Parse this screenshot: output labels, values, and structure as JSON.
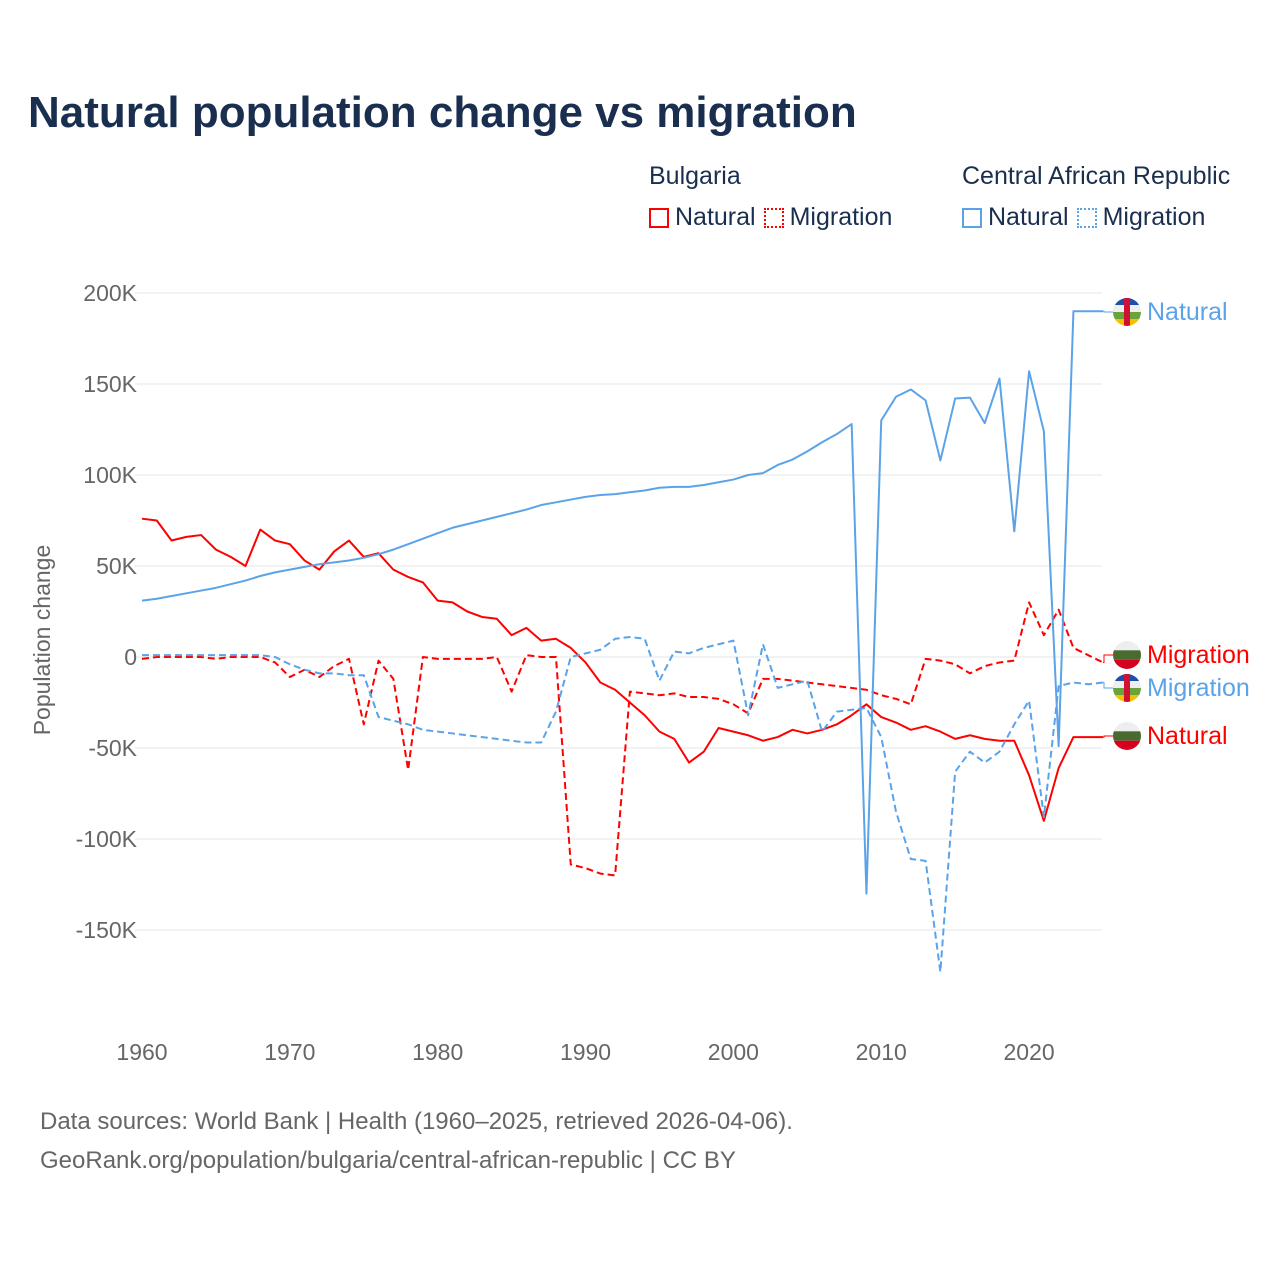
{
  "chart_data": {
    "type": "line",
    "title": "Natural population change vs migration",
    "xlabel": "",
    "ylabel": "Population change",
    "ylim": [
      -190000,
      210000
    ],
    "xlim": [
      1960,
      2025
    ],
    "grid": true,
    "x_ticks": [
      "1960",
      "1970",
      "1980",
      "1990",
      "2000",
      "2010",
      "2020"
    ],
    "y_ticks": [
      {
        "v": 200000,
        "label": "200K"
      },
      {
        "v": 150000,
        "label": "150K"
      },
      {
        "v": 100000,
        "label": "100K"
      },
      {
        "v": 50000,
        "label": "50K"
      },
      {
        "v": 0,
        "label": "0"
      },
      {
        "v": -50000,
        "label": "-50K"
      },
      {
        "v": -100000,
        "label": "-100K"
      },
      {
        "v": -150000,
        "label": "-150K"
      }
    ],
    "legend": {
      "placement": "top-right",
      "groups": [
        {
          "country": "Bulgaria",
          "items": [
            "Natural",
            "Migration"
          ]
        },
        {
          "country": "Central African Republic",
          "items": [
            "Natural",
            "Migration"
          ]
        }
      ]
    },
    "x": [
      1960,
      1961,
      1962,
      1963,
      1964,
      1965,
      1966,
      1967,
      1968,
      1969,
      1970,
      1971,
      1972,
      1973,
      1974,
      1975,
      1976,
      1977,
      1978,
      1979,
      1980,
      1981,
      1982,
      1983,
      1984,
      1985,
      1986,
      1987,
      1988,
      1989,
      1990,
      1991,
      1992,
      1993,
      1994,
      1995,
      1996,
      1997,
      1998,
      1999,
      2000,
      2001,
      2002,
      2003,
      2004,
      2005,
      2006,
      2007,
      2008,
      2009,
      2010,
      2011,
      2012,
      2013,
      2014,
      2015,
      2016,
      2017,
      2018,
      2019,
      2020,
      2021,
      2022,
      2023,
      2024,
      2025
    ],
    "series": [
      {
        "name": "Bulgaria Natural",
        "end_label": "Natural",
        "color": "#ff0000",
        "dash": false,
        "flag": "bulgaria",
        "values": [
          76,
          75,
          64,
          66,
          67,
          59,
          55,
          50,
          70,
          64,
          62,
          53,
          48,
          58,
          64,
          55,
          57,
          48,
          44,
          41,
          31,
          30,
          25,
          22,
          21,
          12,
          16,
          9,
          10,
          5,
          -3,
          -14,
          -18,
          -25,
          -32,
          -41,
          -45,
          -58,
          -52,
          -39,
          -41,
          -43,
          -46,
          -44,
          -40,
          -42,
          -40,
          -37,
          -32,
          -26,
          -33,
          -36,
          -40,
          -38,
          -41,
          -45,
          -43,
          -45,
          -46,
          -46,
          -65,
          -90,
          -61,
          -44,
          -44,
          -44
        ]
      },
      {
        "name": "Bulgaria Migration",
        "end_label": "Migration",
        "color": "#ff0000",
        "dash": true,
        "flag": "bulgaria",
        "values": [
          -1,
          0,
          0,
          0,
          0,
          -1,
          0,
          0,
          0,
          -3,
          -11,
          -7,
          -11,
          -5,
          -1,
          -37,
          -2,
          -12,
          -62,
          0,
          -1,
          -1,
          -1,
          -1,
          0,
          -19,
          1,
          0,
          0,
          -114,
          -116,
          -119,
          -120,
          -19,
          -20,
          -21,
          -20,
          -22,
          -22,
          -23,
          -26,
          -31,
          -12,
          -12,
          -13,
          -14,
          -15,
          -16,
          -17,
          -18,
          -21,
          -23,
          -26,
          -1,
          -2,
          -4,
          -9,
          -5,
          -3,
          -2,
          30,
          12,
          26,
          5,
          1,
          -3
        ]
      },
      {
        "name": "Central African Republic Natural",
        "end_label": "Natural",
        "color": "#5ba3e8",
        "dash": false,
        "flag": "car",
        "values": [
          31,
          32,
          33.5,
          35,
          36.5,
          38,
          40,
          42,
          44.5,
          46.5,
          48,
          49.5,
          51,
          52,
          53,
          54.5,
          56.5,
          59,
          62,
          65,
          68,
          71,
          73,
          75,
          77,
          79,
          81,
          83.5,
          85,
          86.5,
          88,
          89,
          89.5,
          90.5,
          91.5,
          93,
          93.5,
          93.5,
          94.5,
          96,
          97.5,
          100,
          101,
          105.5,
          108.5,
          113,
          118,
          122.5,
          128,
          -130,
          130,
          143,
          147,
          141,
          108,
          142,
          142.5,
          128.5,
          153,
          69,
          157,
          124,
          -49,
          190,
          190,
          190
        ]
      },
      {
        "name": "Central African Republic Migration",
        "end_label": "Migration",
        "color": "#5ba3e8",
        "dash": true,
        "flag": "car",
        "values": [
          1,
          1,
          1,
          1,
          1,
          1,
          1,
          1,
          1,
          0,
          -4,
          -7,
          -9,
          -9,
          -10,
          -10,
          -33,
          -35,
          -37,
          -40,
          -41,
          -42,
          -43,
          -44,
          -45,
          -46,
          -47,
          -47,
          -30,
          0,
          2,
          4,
          10,
          11,
          10,
          -13,
          3,
          2,
          5,
          7,
          9,
          -32,
          7,
          -17,
          -15,
          -13,
          -41,
          -30,
          -29,
          -28,
          -44,
          -85,
          -111,
          -112,
          -173,
          -63,
          -52,
          -58,
          -52,
          -37,
          -24,
          -88,
          -16,
          -14,
          -15,
          -14
        ]
      }
    ],
    "value_unit": "thousands"
  },
  "footer": {
    "line1": "Data sources: World Bank | Health (1960–2025, retrieved 2026-04-06).",
    "line2": "GeoRank.org/population/bulgaria/central-african-republic | CC BY"
  }
}
